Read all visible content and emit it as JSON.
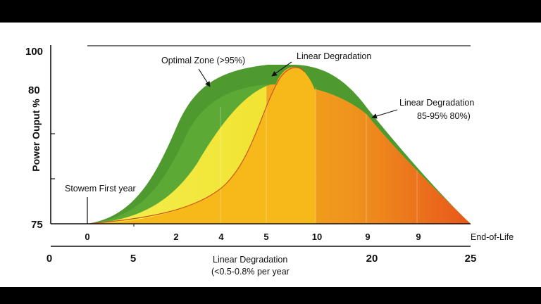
{
  "chart_data": {
    "type": "area",
    "ylabel": "Power Ouput %",
    "y_ticks": [
      "100",
      "80",
      "",
      "",
      "75"
    ],
    "x_ticks_upper": [
      "0",
      "2",
      "4",
      "5",
      "10",
      "9",
      "9",
      "End-of-Life"
    ],
    "x_ticks_lower": [
      "0",
      "5",
      "20",
      "25"
    ],
    "annotations": {
      "optimal_zone": "Optimal Zone (>95%)",
      "linear_top": "Linear Degradation",
      "linear_right_1": "Linear Degradation",
      "linear_right_2": "85-95% 80%)",
      "first_year": "Stowem First year",
      "linear_bottom_1": "Linear Degradation",
      "linear_bottom_2": "(<0.5-0.8% per year"
    },
    "series": [
      {
        "color": "#4e9a2f",
        "values": [
          0,
          14,
          72,
          83,
          84,
          80,
          64,
          0
        ]
      },
      {
        "color": "#efe62c",
        "values": [
          0,
          6,
          40,
          78,
          84,
          72,
          58,
          0
        ]
      },
      {
        "color": "#f5b417",
        "values": [
          0,
          3,
          25,
          72,
          87,
          72,
          58,
          0
        ]
      }
    ],
    "colors": {
      "green": "#4e9a2f",
      "yellow": "#efe62c",
      "gold": "#f5b417",
      "orange": "#ee8a1e",
      "red_orange": "#e8571b"
    }
  }
}
